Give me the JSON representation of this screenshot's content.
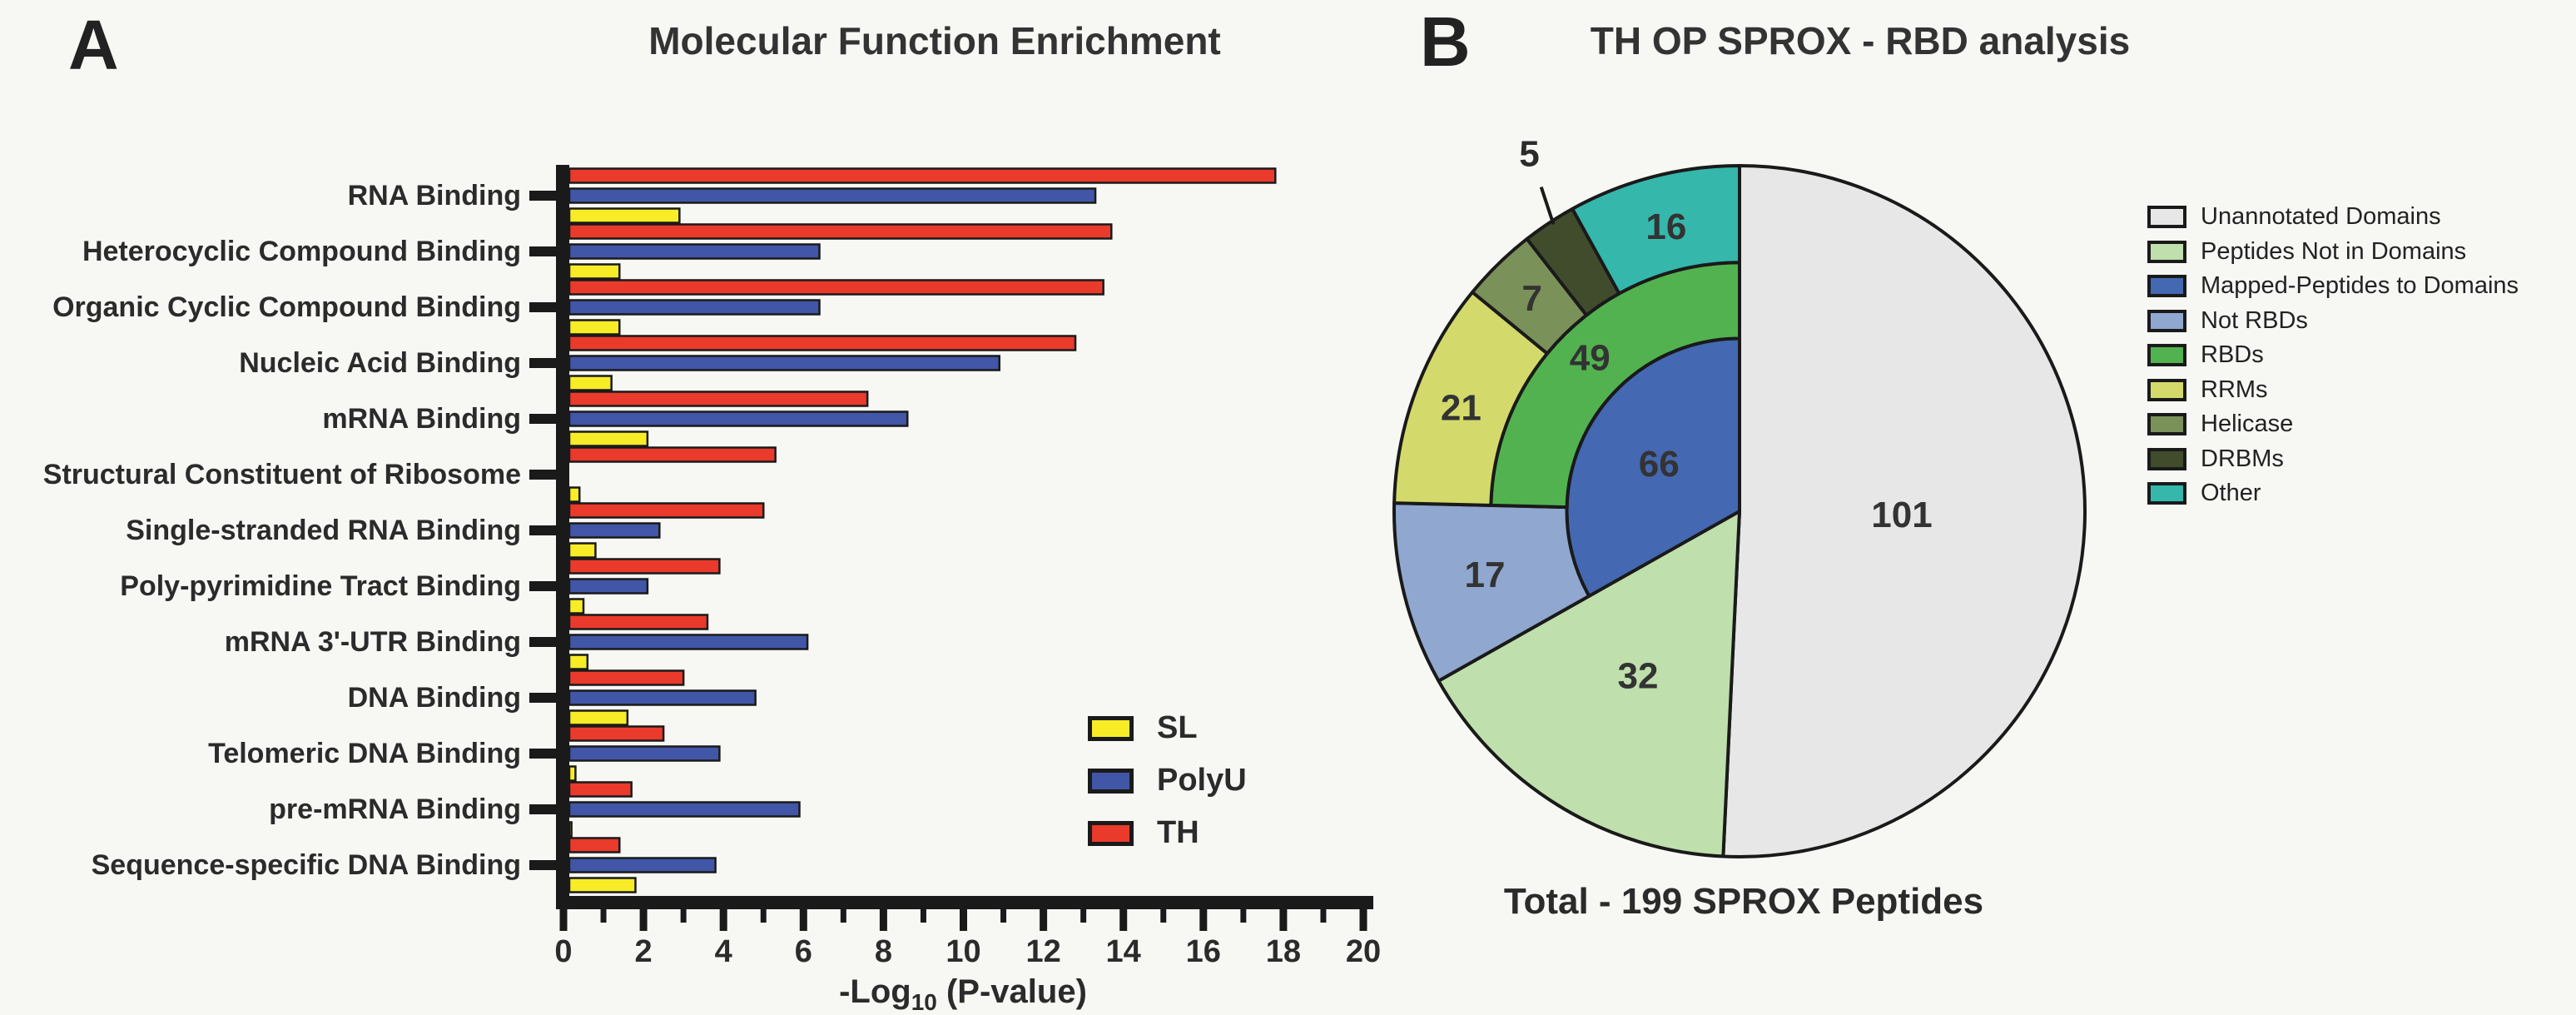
{
  "page": {
    "background": "#F7F7F4"
  },
  "panel_a": {
    "letter": "A",
    "title": "Molecular Function Enrichment",
    "x_axis": {
      "label_pre": "-Log",
      "label_sub": "10",
      "label_post": " (P-value)",
      "min": 0,
      "max": 20,
      "major_ticks": [
        0,
        2,
        4,
        6,
        8,
        10,
        12,
        14,
        16,
        18,
        20
      ],
      "minor_ticks": [
        1,
        3,
        5,
        7,
        9,
        11,
        13,
        15,
        17,
        19
      ]
    },
    "legend": [
      {
        "label": "SL",
        "color": "#F8EC26"
      },
      {
        "label": "PolyU",
        "color": "#4156A6"
      },
      {
        "label": "TH",
        "color": "#E93A2B"
      }
    ]
  },
  "panel_b": {
    "letter": "B",
    "title": "TH OP SPROX - RBD analysis",
    "caption": "Total - 199 SPROX Peptides",
    "legend": [
      {
        "label": "Unannotated Domains",
        "color": "#E7E7E7"
      },
      {
        "label": "Peptides Not in Domains",
        "color": "#BFDFAD"
      },
      {
        "label": "Mapped-Peptides to Domains",
        "color": "#4468B1"
      },
      {
        "label": "Not RBDs",
        "color": "#90A7D0"
      },
      {
        "label": "RBDs",
        "color": "#52B24F"
      },
      {
        "label": "RRMs",
        "color": "#D3DA6B"
      },
      {
        "label": "Helicase",
        "color": "#7A9159"
      },
      {
        "label": "DRBMs",
        "color": "#404C2C"
      },
      {
        "label": "Other",
        "color": "#35B7AC"
      }
    ]
  },
  "chart_data": [
    {
      "type": "bar",
      "orientation": "horizontal",
      "title": "Molecular Function Enrichment",
      "xlabel": "-Log10 (P-value)",
      "ylabel": "",
      "xlim": [
        0,
        20
      ],
      "grid": false,
      "legend_position": "inside-right",
      "categories": [
        "RNA Binding",
        "Heterocyclic Compound Binding",
        "Organic Cyclic Compound Binding",
        "Nucleic Acid Binding",
        "mRNA Binding",
        "Structural Constituent of Ribosome",
        "Single-stranded RNA Binding",
        "Poly-pyrimidine Tract Binding",
        "mRNA 3'-UTR Binding",
        "DNA Binding",
        "Telomeric DNA Binding",
        "pre-mRNA Binding",
        "Sequence-specific DNA Binding"
      ],
      "series": [
        {
          "name": "TH",
          "color": "#E93A2B",
          "row": -1,
          "values": [
            17.8,
            13.7,
            13.5,
            12.8,
            7.6,
            5.3,
            5.0,
            3.9,
            3.6,
            3.0,
            2.5,
            1.7,
            1.4
          ]
        },
        {
          "name": "PolyU",
          "color": "#4156A6",
          "row": 0,
          "values": [
            13.3,
            6.4,
            6.4,
            10.9,
            8.6,
            0,
            2.4,
            2.1,
            6.1,
            4.8,
            3.9,
            5.9,
            3.8
          ]
        },
        {
          "name": "SL",
          "color": "#F8EC26",
          "row": 1,
          "values": [
            2.9,
            1.4,
            1.4,
            1.2,
            2.1,
            0.4,
            0.8,
            0.5,
            0.6,
            1.6,
            0.3,
            0.2,
            1.8
          ]
        }
      ]
    },
    {
      "type": "pie",
      "variant": "sunburst",
      "title": "TH OP SPROX - RBD analysis",
      "caption": "Total - 199 SPROX Peptides",
      "total": 199,
      "slices": [
        {
          "label": "Unannotated Domains",
          "value": 101,
          "start": 0,
          "r0": 0,
          "r1": 1,
          "color": "#E7E7E7",
          "label_r": 0.47
        },
        {
          "label": "Peptides Not in Domains",
          "value": 32,
          "start": 101,
          "r0": 0,
          "r1": 1,
          "color": "#BFDFAD",
          "label_r": 0.56
        },
        {
          "label": "Mapped-Peptides to Domains",
          "value": 66,
          "start": 133,
          "r0": 0,
          "r1": 0.5,
          "color": "#4468B1",
          "label_r": 0.27
        },
        {
          "label": "Not RBDs",
          "value": 17,
          "start": 133,
          "r0": 0.5,
          "r1": 1,
          "color": "#90A7D0",
          "label_r": 0.76
        },
        {
          "label": "RBDs",
          "value": 49,
          "start": 150,
          "r0": 0.5,
          "r1": 0.72,
          "color": "#52B24F",
          "label_r": 0.62
        },
        {
          "label": "RRMs",
          "value": 21,
          "start": 150,
          "r0": 0.72,
          "r1": 1,
          "color": "#D3DA6B",
          "label_r": 0.86
        },
        {
          "label": "Helicase",
          "value": 7,
          "start": 171,
          "r0": 0.72,
          "r1": 1,
          "color": "#7A9159",
          "label_r": 0.86
        },
        {
          "label": "DRBMs",
          "value": 5,
          "start": 178,
          "r0": 0.72,
          "r1": 1,
          "color": "#404C2C",
          "label_external": true
        },
        {
          "label": "Other",
          "value": 16,
          "start": 183,
          "r0": 0.72,
          "r1": 1,
          "color": "#35B7AC",
          "label_r": 0.85
        }
      ]
    }
  ]
}
